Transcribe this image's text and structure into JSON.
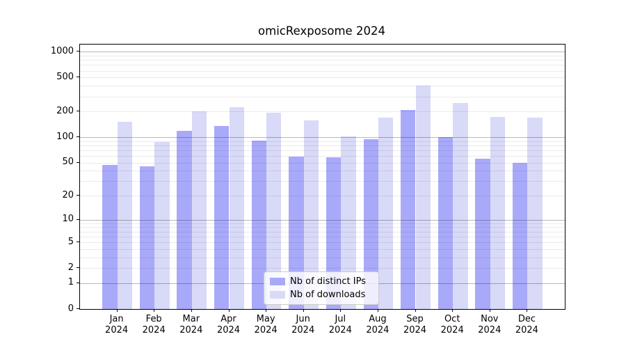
{
  "title": "omicRexposome 2024",
  "legend": {
    "items": [
      {
        "label": "Nb of distinct IPs"
      },
      {
        "label": "Nb of downloads"
      }
    ]
  },
  "chart_data": {
    "type": "bar",
    "title": "omicRexposome 2024",
    "categories": [
      "Jan 2024",
      "Feb 2024",
      "Mar 2024",
      "Apr 2024",
      "May 2024",
      "Jun 2024",
      "Jul 2024",
      "Aug 2024",
      "Sep 2024",
      "Oct 2024",
      "Nov 2024",
      "Dec 2024"
    ],
    "series": [
      {
        "name": "Nb of distinct IPs",
        "color": "#a9a9fa",
        "values": [
          47,
          45,
          118,
          135,
          91,
          59,
          58,
          95,
          208,
          100,
          56,
          50
        ]
      },
      {
        "name": "Nb of downloads",
        "color": "#d9d9f8",
        "values": [
          150,
          87,
          200,
          225,
          192,
          158,
          101,
          168,
          400,
          250,
          172,
          170
        ]
      }
    ],
    "yscale": "log1p",
    "yticks": [
      1000,
      500,
      200,
      100,
      50,
      20,
      10,
      5,
      2,
      1,
      0
    ],
    "ylim": [
      0,
      1210
    ],
    "grid": true,
    "legend_position": "lower center",
    "colors": {
      "grid_major": "rgba(0,0,0,0.28)",
      "grid_minor": "rgba(0,0,0,0.08)",
      "axis": "#000000",
      "background": "#ffffff"
    }
  }
}
